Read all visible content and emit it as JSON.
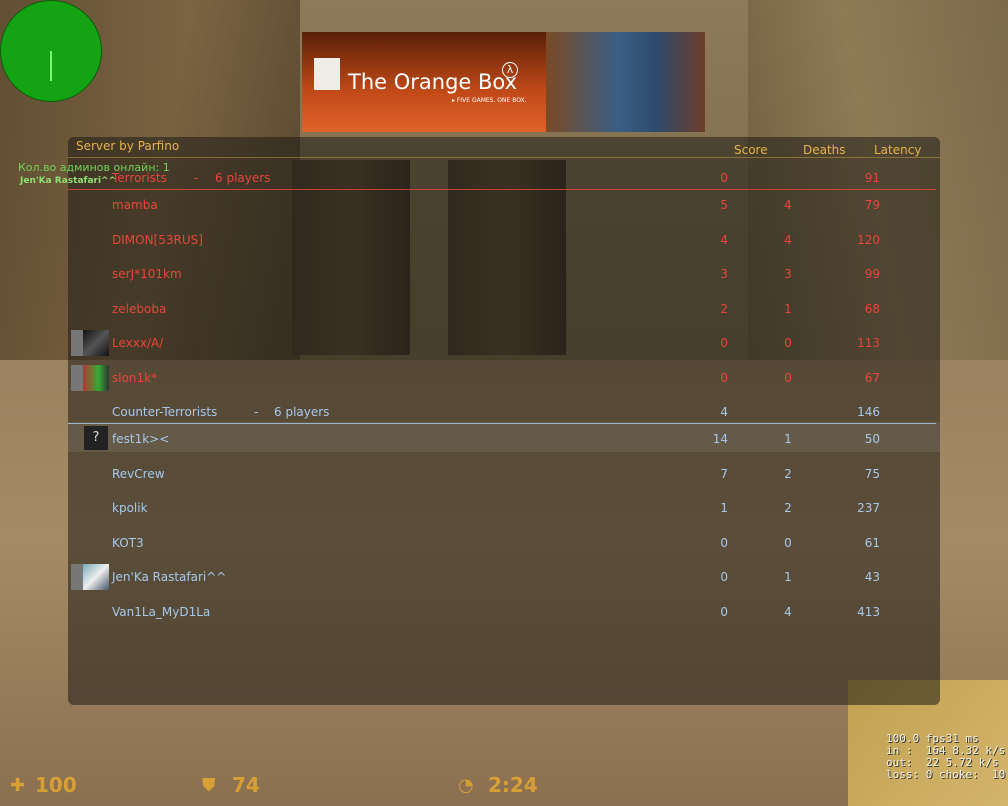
{
  "banner": {
    "title": "The Orange Box",
    "tagline": "▸ FIVE GAMES. ONE BOX.",
    "logo": "λ"
  },
  "admin_overlay": {
    "line1": "Кол.во админов онлайн: 1",
    "line2": "Jen'Ka Rastafari^^"
  },
  "scoreboard": {
    "server_name": "Server by Parfino",
    "columns": {
      "score": "Score",
      "deaths": "Deaths",
      "latency": "Latency"
    },
    "terrorists": {
      "label": "Terrorists",
      "separator": "-",
      "players_label": "6 players",
      "score": "0",
      "latency": "91",
      "color": "#e8453c",
      "players": [
        {
          "name": "mamba",
          "score": "5",
          "deaths": "4",
          "latency": "79"
        },
        {
          "name": "DIMON[53RUS]",
          "score": "4",
          "deaths": "4",
          "latency": "120"
        },
        {
          "name": "serJ*101km",
          "score": "3",
          "deaths": "3",
          "latency": "99"
        },
        {
          "name": "zeleboba",
          "score": "2",
          "deaths": "1",
          "latency": "68"
        },
        {
          "name": "Lexxx/A/",
          "score": "0",
          "deaths": "0",
          "latency": "113"
        },
        {
          "name": "slon1k*",
          "score": "0",
          "deaths": "0",
          "latency": "67"
        }
      ]
    },
    "counter_terrorists": {
      "label": "Counter-Terrorists",
      "separator": "-",
      "players_label": "6 players",
      "score": "4",
      "latency": "146",
      "color": "#a8c8ea",
      "players": [
        {
          "name": "fest1k><",
          "score": "14",
          "deaths": "1",
          "latency": "50",
          "avatar": "?"
        },
        {
          "name": "RevCrew",
          "score": "7",
          "deaths": "2",
          "latency": "75"
        },
        {
          "name": "kpolik",
          "score": "1",
          "deaths": "2",
          "latency": "237"
        },
        {
          "name": "KOT3",
          "score": "0",
          "deaths": "0",
          "latency": "61"
        },
        {
          "name": "Jen'Ka Rastafari^^",
          "score": "0",
          "deaths": "1",
          "latency": "43"
        },
        {
          "name": "Van1La_MyD1La",
          "score": "0",
          "deaths": "4",
          "latency": "413"
        }
      ]
    }
  },
  "netgraph": {
    "line1": "100.0 fps31 ms",
    "line2": "in :  164 8.32 k/s",
    "line3": "out:  22 5.72 k/s",
    "line4": "loss: 0 choke:  10"
  },
  "hud": {
    "health": "100",
    "armor": "74",
    "timer": "2:24",
    "health_icon": "cross-icon",
    "armor_icon": "shield-icon",
    "timer_icon": "stopwatch-icon",
    "color": "#e6a830"
  }
}
